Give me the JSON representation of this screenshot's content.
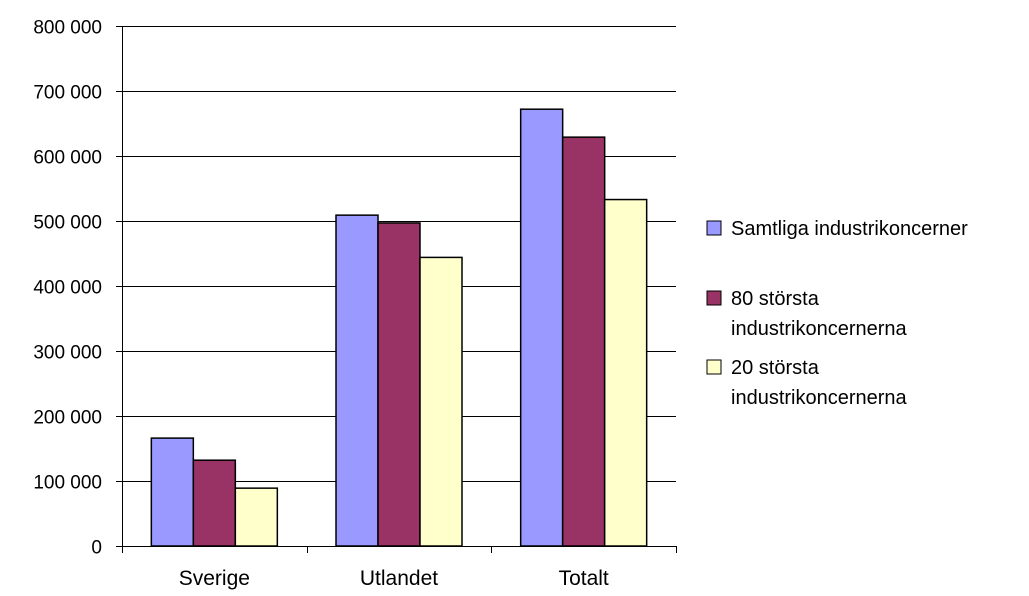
{
  "chart_data": {
    "type": "bar",
    "title": "",
    "xlabel": "",
    "ylabel": "",
    "categories": [
      "Sverige",
      "Utlandet",
      "Totalt"
    ],
    "series": [
      {
        "name": "Samtliga industrikoncerner",
        "color": "#9999ff",
        "values": [
          166000,
          509000,
          672000
        ]
      },
      {
        "name": "80 största industrikoncernerna",
        "color": "#993366",
        "values": [
          132000,
          497000,
          629000
        ]
      },
      {
        "name": "20 största industrikoncernerna",
        "color": "#ffffcc",
        "values": [
          89000,
          444000,
          533000
        ]
      }
    ],
    "ylim": [
      0,
      800000
    ],
    "yticks": [
      0,
      100000,
      200000,
      300000,
      400000,
      500000,
      600000,
      700000,
      800000
    ],
    "ytick_labels": [
      "0",
      "100 000",
      "200 000",
      "300 000",
      "400 000",
      "500 000",
      "600 000",
      "700 000",
      "800 000"
    ],
    "grid": true,
    "legend": {
      "position": "right",
      "entries": [
        {
          "lines": [
            "Samtliga industrikoncerner"
          ]
        },
        {
          "lines": [
            "80 största",
            "industrikoncernerna"
          ]
        },
        {
          "lines": [
            "20 största",
            "industrikoncernerna"
          ]
        }
      ]
    },
    "bar_outline_color": "#000000",
    "gridline_color": "#000000"
  }
}
